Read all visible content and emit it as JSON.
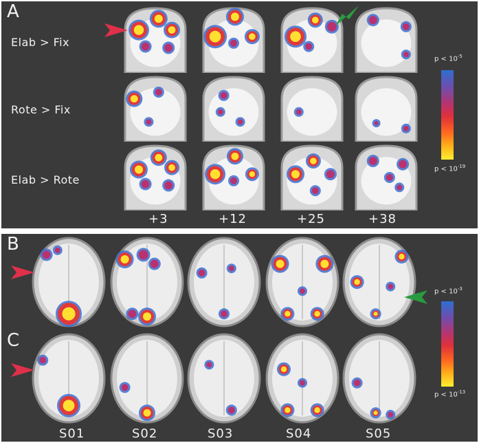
{
  "panel_a": {
    "letter": "A",
    "rows": [
      {
        "label": "Elab > Fix"
      },
      {
        "label": "Rote > Fix"
      },
      {
        "label": "Elab > Rote"
      }
    ],
    "columns": [
      "+3",
      "+12",
      "+25",
      "+38"
    ],
    "scale": {
      "top_base": "p < 10",
      "top_exp": "-5",
      "bottom_base": "p < 10",
      "bottom_exp": "-19"
    }
  },
  "panel_b": {
    "letter": "B"
  },
  "panel_c": {
    "letter": "C"
  },
  "subjects": [
    "S01",
    "S02",
    "S03",
    "S04",
    "S05"
  ],
  "scale_bc": {
    "top_base": "p < 10",
    "top_exp": "-3",
    "bottom_base": "p < 10",
    "bottom_exp": "-13"
  },
  "colors": {
    "arrow_red": "#e0304a",
    "arrow_green": "#2a9a40",
    "background": "#3a3a3a"
  }
}
